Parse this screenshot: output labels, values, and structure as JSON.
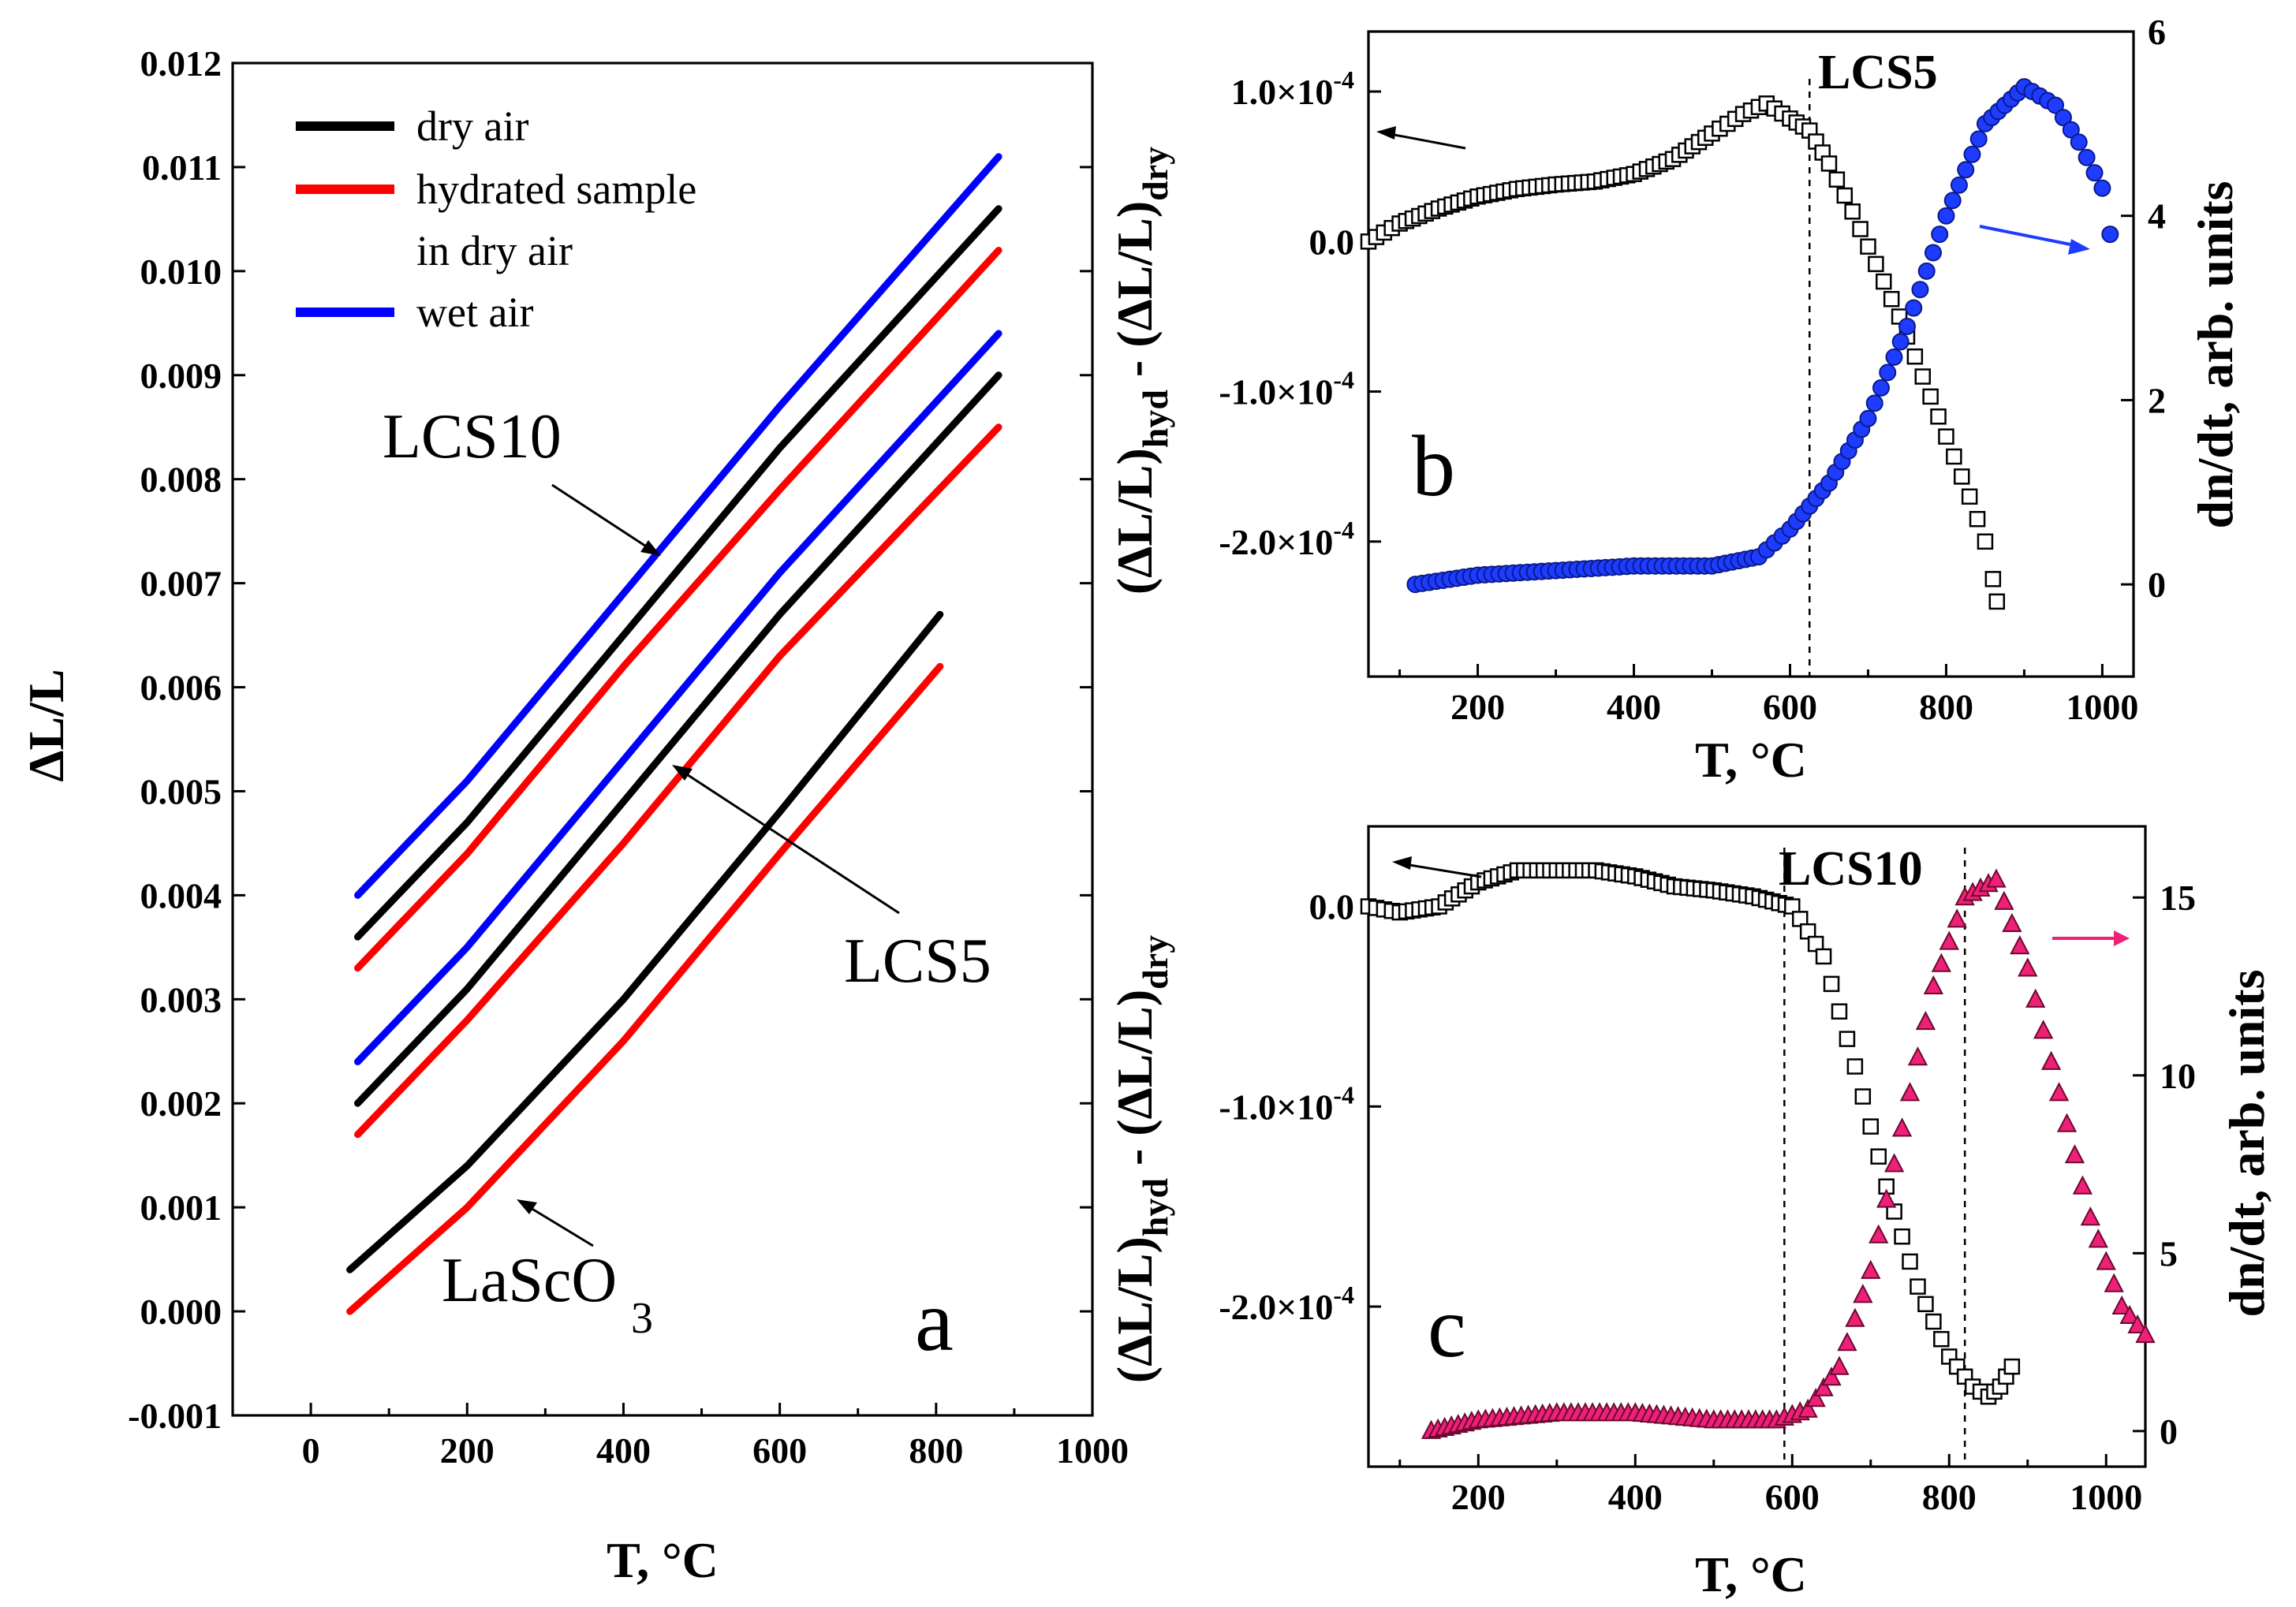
{
  "chart_data": [
    {
      "panel": "a",
      "type": "line",
      "panel_label": "a",
      "xlabel": "T, °C",
      "ylabel": "ΔL/L",
      "xlim": [
        -100,
        1000
      ],
      "ylim": [
        -0.001,
        0.012
      ],
      "xticks": [
        "0",
        "200",
        "400",
        "600",
        "800",
        "1000"
      ],
      "yticks": [
        "-0.001",
        "0.000",
        "0.001",
        "0.002",
        "0.003",
        "0.004",
        "0.005",
        "0.006",
        "0.007",
        "0.008",
        "0.009",
        "0.010",
        "0.011",
        "0.012"
      ],
      "legend": [
        {
          "label": "dry air",
          "color": "#000000"
        },
        {
          "label": "hydrated sample",
          "label2": "in dry air",
          "color": "#ff0000"
        },
        {
          "label": "wet air",
          "color": "#0000ff"
        }
      ],
      "annotations": [
        "LCS10",
        "LCS5",
        "LaScO",
        "3"
      ],
      "series": [
        {
          "name": "LCS10 wet air",
          "color": "#0000ff",
          "x": [
            60,
            200,
            400,
            600,
            880
          ],
          "y": [
            0.004,
            0.0051,
            0.0069,
            0.0087,
            0.0111
          ]
        },
        {
          "name": "LCS10 dry air",
          "color": "#000000",
          "x": [
            60,
            200,
            400,
            600,
            880
          ],
          "y": [
            0.0036,
            0.0047,
            0.0065,
            0.0083,
            0.0106
          ]
        },
        {
          "name": "LCS10 hydrated sample in dry air",
          "color": "#ff0000",
          "x": [
            60,
            200,
            400,
            600,
            880
          ],
          "y": [
            0.0033,
            0.0044,
            0.0062,
            0.0079,
            0.0102
          ]
        },
        {
          "name": "LCS5 wet air",
          "color": "#0000ff",
          "x": [
            60,
            200,
            400,
            600,
            880
          ],
          "y": [
            0.0024,
            0.0035,
            0.0053,
            0.0071,
            0.0094
          ]
        },
        {
          "name": "LCS5 dry air",
          "color": "#000000",
          "x": [
            60,
            200,
            400,
            600,
            880
          ],
          "y": [
            0.002,
            0.0031,
            0.0049,
            0.0067,
            0.009
          ]
        },
        {
          "name": "LCS5 hydrated sample in dry air",
          "color": "#ff0000",
          "x": [
            60,
            200,
            400,
            600,
            880
          ],
          "y": [
            0.0017,
            0.0028,
            0.0045,
            0.0063,
            0.0085
          ]
        },
        {
          "name": "LaScO3 dry air",
          "color": "#000000",
          "x": [
            50,
            200,
            400,
            600,
            805
          ],
          "y": [
            0.0004,
            0.0014,
            0.003,
            0.0048,
            0.0067
          ]
        },
        {
          "name": "LaScO3 hydrated sample in dry air",
          "color": "#ff0000",
          "x": [
            50,
            200,
            400,
            600,
            805
          ],
          "y": [
            0.0,
            0.001,
            0.0026,
            0.0044,
            0.0062
          ]
        }
      ]
    },
    {
      "panel": "b",
      "type": "scatter",
      "panel_label": "b",
      "title": "LCS5",
      "xlabel": "T, °C",
      "ylabel_main": "(ΔL/L)",
      "ylabel_sub1": "hyd",
      "ylabel_mid": " - (ΔL/L)",
      "ylabel_sub2": "dry",
      "y2label": "dn/dt, arb. units",
      "xlim": [
        60,
        1040
      ],
      "ylim": [
        -0.00029,
        0.00014
      ],
      "y2lim": [
        -1,
        6
      ],
      "xticks": [
        "200",
        "400",
        "600",
        "800",
        "1000"
      ],
      "yticks_main": [
        "1.0×10",
        "0.0",
        "-1.0×10",
        "-2.0×10"
      ],
      "ytick_exp": "-4",
      "y2ticks": [
        "0",
        "2",
        "4",
        "6"
      ],
      "vline_x": 625,
      "series": [
        {
          "name": "(ΔL/L)hyd - (ΔL/L)dry",
          "axis": "left",
          "color": "#000000",
          "marker": "square",
          "x": [
            60,
            100,
            150,
            200,
            250,
            300,
            350,
            400,
            450,
            500,
            540,
            570,
            600,
            625,
            650,
            680,
            710,
            740,
            770,
            800,
            830,
            850,
            860,
            865
          ],
          "y": [
            0.0,
            1.2e-05,
            2.2e-05,
            3e-05,
            3.5e-05,
            3.8e-05,
            4e-05,
            4.5e-05,
            5.5e-05,
            7.2e-05,
            8.5e-05,
            9.2e-05,
            8.2e-05,
            7.4e-05,
            5.2e-05,
            2e-05,
            -1.5e-05,
            -5e-05,
            -9e-05,
            -0.00013,
            -0.00017,
            -0.0002,
            -0.000225,
            -0.00024
          ]
        },
        {
          "name": "dn/dt",
          "axis": "right",
          "color": "#1e3cff",
          "marker": "circle",
          "x": [
            120,
            200,
            300,
            400,
            500,
            560,
            600,
            650,
            700,
            750,
            800,
            850,
            900,
            940,
            970,
            1000,
            1010
          ],
          "y": [
            0.0,
            0.1,
            0.15,
            0.2,
            0.2,
            0.3,
            0.6,
            1.1,
            1.8,
            2.8,
            4.0,
            5.0,
            5.4,
            5.2,
            4.8,
            4.3,
            3.8
          ]
        }
      ]
    },
    {
      "panel": "c",
      "type": "scatter",
      "panel_label": "c",
      "title": "LCS10",
      "xlabel": "T, °C",
      "ylabel_main": "(ΔL/L)",
      "ylabel_sub1": "hyd",
      "ylabel_mid": " - (ΔL/L)",
      "ylabel_sub2": "dry",
      "y2label": "dn/dt, arb. units",
      "xlim": [
        60,
        1050
      ],
      "ylim": [
        -0.00028,
        4e-05
      ],
      "y2lim": [
        -1,
        17
      ],
      "xticks": [
        "200",
        "400",
        "600",
        "800",
        "1000"
      ],
      "yticks_main": [
        "0.0",
        "-1.0×10",
        "-2.0×10"
      ],
      "ytick_exp": "-4",
      "y2ticks": [
        "0",
        "5",
        "10",
        "15"
      ],
      "vlines_x": [
        590,
        820
      ],
      "series": [
        {
          "name": "(ΔL/L)hyd - (ΔL/L)dry",
          "axis": "left",
          "color": "#000000",
          "marker": "square",
          "x": [
            60,
            100,
            150,
            200,
            250,
            300,
            350,
            400,
            450,
            500,
            550,
            600,
            640,
            680,
            720,
            760,
            800,
            830,
            850,
            865,
            880
          ],
          "y": [
            0.0,
            -3e-06,
            0.0,
            1.2e-05,
            1.8e-05,
            1.8e-05,
            1.8e-05,
            1.5e-05,
            1e-05,
            8e-06,
            5e-06,
            0.0,
            -2.5e-05,
            -8e-05,
            -0.00014,
            -0.00019,
            -0.000225,
            -0.00024,
            -0.000245,
            -0.00024,
            -0.00023
          ]
        },
        {
          "name": "dn/dt",
          "axis": "right",
          "color": "#ee2077",
          "marker": "triangle",
          "x": [
            140,
            200,
            300,
            400,
            500,
            580,
            620,
            660,
            700,
            740,
            780,
            820,
            860,
            900,
            940,
            980,
            1020,
            1050
          ],
          "y": [
            0.0,
            0.3,
            0.5,
            0.5,
            0.3,
            0.3,
            0.6,
            1.8,
            4.5,
            8.5,
            12.5,
            15.0,
            15.5,
            13.0,
            9.5,
            6.0,
            3.5,
            2.7
          ]
        }
      ]
    }
  ]
}
